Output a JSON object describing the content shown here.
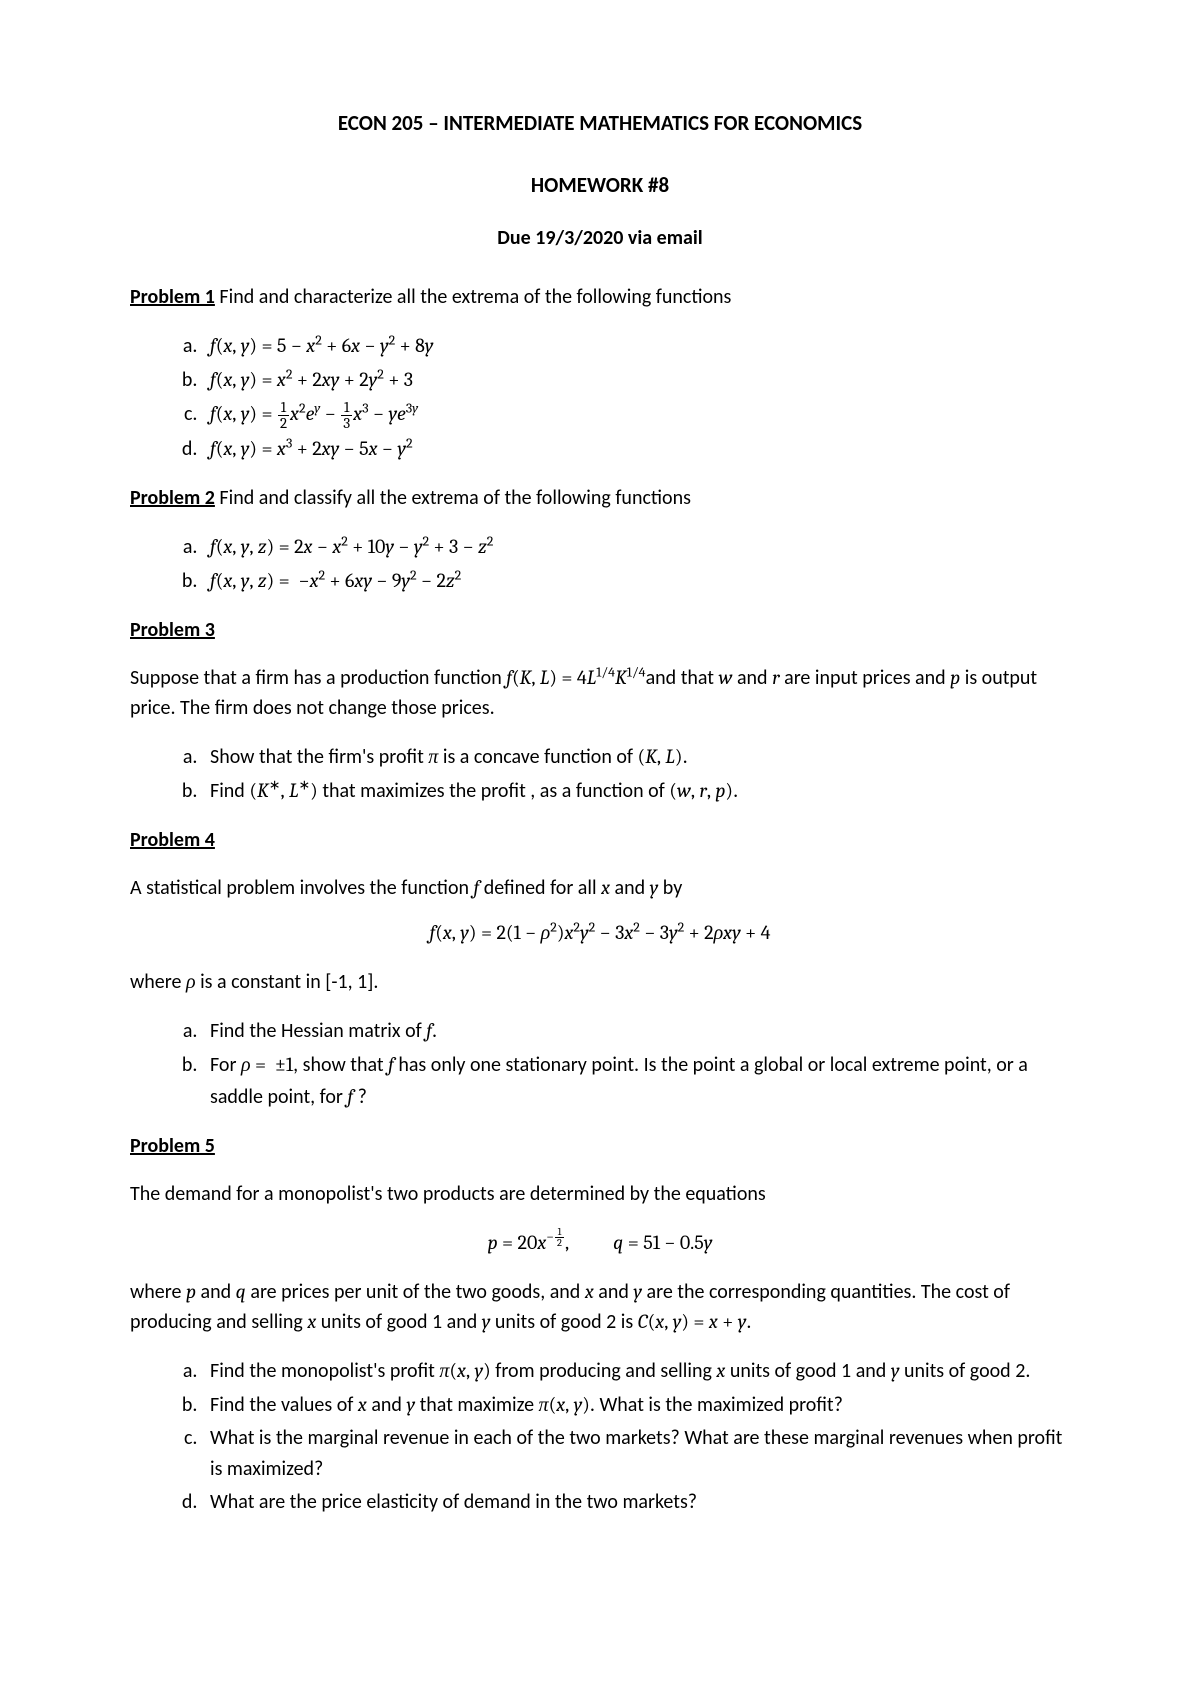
{
  "header": {
    "title": "ECON 205 – INTERMEDIATE MATHEMATICS FOR ECONOMICS",
    "subtitle": "HOMEWORK #8",
    "due": "Due 19/3/2020 via email"
  },
  "p1": {
    "head": "Problem 1",
    "text": " Find and characterize all the extrema of the following functions"
  },
  "p2": {
    "head": "Problem 2",
    "text": " Find and classify all the extrema of the following functions"
  },
  "p3": {
    "head": "Problem 3",
    "intro_a": "Suppose that a firm has a production function ",
    "intro_b": "and that ",
    "intro_c": " and ",
    "intro_d": " are input prices and ",
    "intro_e": " is output price. The firm does not change those prices.",
    "a_pre": "Show that the firm's profit ",
    "a_post": " is a concave function of ",
    "b_pre": "Find ",
    "b_mid": " that maximizes the profit , as a function of "
  },
  "p4": {
    "head": "Problem 4",
    "intro_a": "A statistical problem involves the function ",
    "intro_b": " defined for all ",
    "intro_c": " and ",
    "intro_d": " by",
    "where_a": "where ",
    "where_b": " is a constant in [-1, 1].",
    "a": "Find the Hessian matrix of ",
    "b_pre": "For ",
    "b_mid": ", show that ",
    "b_post1": " has only one stationary point. Is the point a global or local extreme point, or a saddle point, for ",
    "b_post2": " ?"
  },
  "p5": {
    "head": "Problem 5",
    "intro": "The demand for a monopolist's two products are determined by the equations",
    "after_a": "where ",
    "after_b": " and ",
    "after_c": " are prices per unit of the two goods, and ",
    "after_d": " and ",
    "after_e": " are the corresponding quantities. The cost of producing and selling ",
    "after_f": " units of good 1 and ",
    "after_g": " units of good 2 is ",
    "a_pre": "Find the monopolist's profit ",
    "a_mid": " from producing and selling ",
    "a_mid2": " units of good 1 and ",
    "a_post": " units of good 2.",
    "b_pre": "Find the values of ",
    "b_mid": " and ",
    "b_mid2": " that maximize ",
    "b_post": ". What is the maximized profit?",
    "c": "What is the marginal revenue in each of the two markets? What are these marginal revenues when profit is maximized?",
    "d": "What are the price elasticity of demand in the two markets?"
  }
}
